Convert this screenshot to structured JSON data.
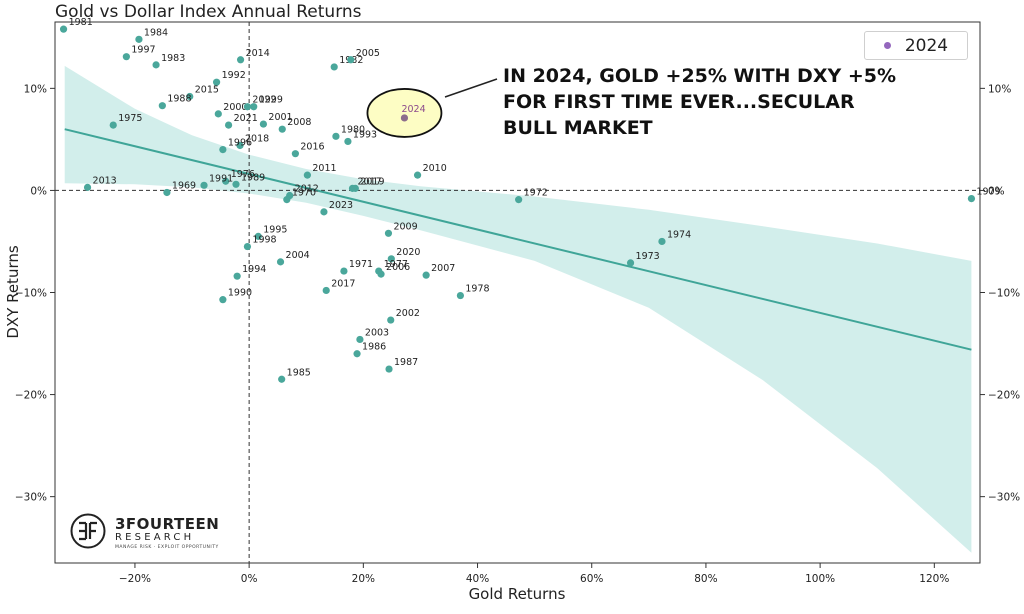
{
  "chart_data": {
    "type": "scatter",
    "title": "Gold vs Dollar Index Annual Returns",
    "xlabel": "Gold Returns",
    "ylabel": "DXY Returns",
    "xlim": [
      -34,
      128
    ],
    "ylim": [
      -36.5,
      16.5
    ],
    "x_ticks": [
      -20,
      0,
      20,
      40,
      60,
      80,
      100,
      120
    ],
    "x_tick_labels": [
      "−20%",
      "0%",
      "20%",
      "40%",
      "60%",
      "80%",
      "100%",
      "120%"
    ],
    "y_ticks": [
      10,
      0,
      -10,
      -20,
      -30
    ],
    "y_tick_labels": [
      "10%",
      "0%",
      "−10%",
      "−20%",
      "−30%"
    ],
    "zero_lines": true,
    "grid": false,
    "legend": {
      "position": "top-right",
      "entries": [
        {
          "name": "2024",
          "color": "#9467bd"
        }
      ]
    },
    "point_color": "#4aa79b",
    "highlight_color": "#8c6d8c",
    "trendline": {
      "x": [
        -32.3,
        126.5
      ],
      "y": [
        6.0,
        -15.6
      ],
      "color": "#3fa598"
    },
    "confidence_band": {
      "x": [
        -32.3,
        -20,
        -10,
        0,
        10,
        20,
        30,
        50,
        70,
        90,
        110,
        126.5
      ],
      "upper": [
        12.2,
        8.0,
        5.4,
        3.5,
        2.1,
        1.1,
        0.4,
        -0.6,
        -1.9,
        -3.5,
        -5.2,
        -6.9
      ],
      "lower": [
        0.7,
        0.6,
        0.3,
        -0.3,
        -1.2,
        -2.5,
        -3.9,
        -6.9,
        -11.5,
        -18.6,
        -27.2,
        -35.5
      ],
      "color": "#d2eeeb"
    },
    "points": [
      {
        "label": "1981",
        "x": -32.5,
        "y": 15.8
      },
      {
        "label": "1984",
        "x": -19.3,
        "y": 14.8
      },
      {
        "label": "1997",
        "x": -21.5,
        "y": 13.1
      },
      {
        "label": "1983",
        "x": -16.3,
        "y": 12.3
      },
      {
        "label": "2014",
        "x": -1.5,
        "y": 12.8
      },
      {
        "label": "1982",
        "x": 14.9,
        "y": 12.1
      },
      {
        "label": "2005",
        "x": 17.8,
        "y": 12.8
      },
      {
        "label": "1992",
        "x": -5.7,
        "y": 10.6
      },
      {
        "label": "2015",
        "x": -10.4,
        "y": 9.2
      },
      {
        "label": "1988",
        "x": -15.2,
        "y": 8.3
      },
      {
        "label": "2000",
        "x": -5.4,
        "y": 7.5
      },
      {
        "label": "2022",
        "x": -0.3,
        "y": 8.2
      },
      {
        "label": "1999",
        "x": 0.8,
        "y": 8.2
      },
      {
        "label": "2021",
        "x": -3.6,
        "y": 6.4
      },
      {
        "label": "1975",
        "x": -23.8,
        "y": 6.4
      },
      {
        "label": "2001",
        "x": 2.5,
        "y": 6.5
      },
      {
        "label": "2008",
        "x": 5.8,
        "y": 6.0
      },
      {
        "label": "1980",
        "x": 15.2,
        "y": 5.3
      },
      {
        "label": "1993",
        "x": 17.3,
        "y": 4.8
      },
      {
        "label": "2018",
        "x": -1.6,
        "y": 4.4
      },
      {
        "label": "1996",
        "x": -4.6,
        "y": 4.0
      },
      {
        "label": "2016",
        "x": 8.1,
        "y": 3.6
      },
      {
        "label": "2011",
        "x": 10.2,
        "y": 1.5
      },
      {
        "label": "2010",
        "x": 29.5,
        "y": 1.5
      },
      {
        "label": "1976",
        "x": -4.1,
        "y": 0.9
      },
      {
        "label": "1989",
        "x": -2.3,
        "y": 0.6
      },
      {
        "label": "1991",
        "x": -7.9,
        "y": 0.5
      },
      {
        "label": "2013",
        "x": -28.3,
        "y": 0.3
      },
      {
        "label": "1969",
        "x": -14.4,
        "y": -0.2
      },
      {
        "label": "2017",
        "x": 18.1,
        "y": 0.2
      },
      {
        "label": "2019",
        "x": 18.6,
        "y": 0.2
      },
      {
        "label": "2012",
        "x": 7.1,
        "y": -0.5
      },
      {
        "label": "1970",
        "x": 6.6,
        "y": -0.9
      },
      {
        "label": "1972",
        "x": 47.2,
        "y": -0.9
      },
      {
        "label": "1979",
        "x": 126.5,
        "y": -0.8
      },
      {
        "label": "2023",
        "x": 13.1,
        "y": -2.1
      },
      {
        "label": "2009",
        "x": 24.4,
        "y": -4.2
      },
      {
        "label": "1974",
        "x": 72.3,
        "y": -5.0
      },
      {
        "label": "1995",
        "x": 1.6,
        "y": -4.5
      },
      {
        "label": "1998",
        "x": -0.3,
        "y": -5.5
      },
      {
        "label": "2020",
        "x": 24.9,
        "y": -6.7
      },
      {
        "label": "2004",
        "x": 5.5,
        "y": -7.0
      },
      {
        "label": "1973",
        "x": 66.8,
        "y": -7.1
      },
      {
        "label": "1971",
        "x": 16.6,
        "y": -7.9
      },
      {
        "label": "1977",
        "x": 22.7,
        "y": -7.9
      },
      {
        "label": "2006",
        "x": 23.1,
        "y": -8.2
      },
      {
        "label": "2007",
        "x": 31.0,
        "y": -8.3
      },
      {
        "label": "1994",
        "x": -2.1,
        "y": -8.4
      },
      {
        "label": "2017 ",
        "x": 13.5,
        "y": -9.8
      },
      {
        "label": "1978",
        "x": 37.0,
        "y": -10.3
      },
      {
        "label": "1990",
        "x": -4.6,
        "y": -10.7
      },
      {
        "label": "2002",
        "x": 24.8,
        "y": -12.7
      },
      {
        "label": "2003",
        "x": 19.4,
        "y": -14.6
      },
      {
        "label": "1986",
        "x": 18.9,
        "y": -16.0
      },
      {
        "label": "1987",
        "x": 24.5,
        "y": -17.5
      },
      {
        "label": "1985",
        "x": 5.7,
        "y": -18.5
      }
    ],
    "highlight": {
      "label": "2024",
      "x": 27.2,
      "y": 7.1
    },
    "annotation": {
      "lines": [
        "IN 2024, GOLD +25% WITH DXY +5%",
        "FOR FIRST TIME EVER...SECULAR",
        "BULL MARKET"
      ]
    }
  },
  "logo": {
    "name": "3FOURTEEN",
    "sub": "RESEARCH",
    "tagline": "MANAGE RISK · EXPLOIT OPPORTUNITY"
  }
}
